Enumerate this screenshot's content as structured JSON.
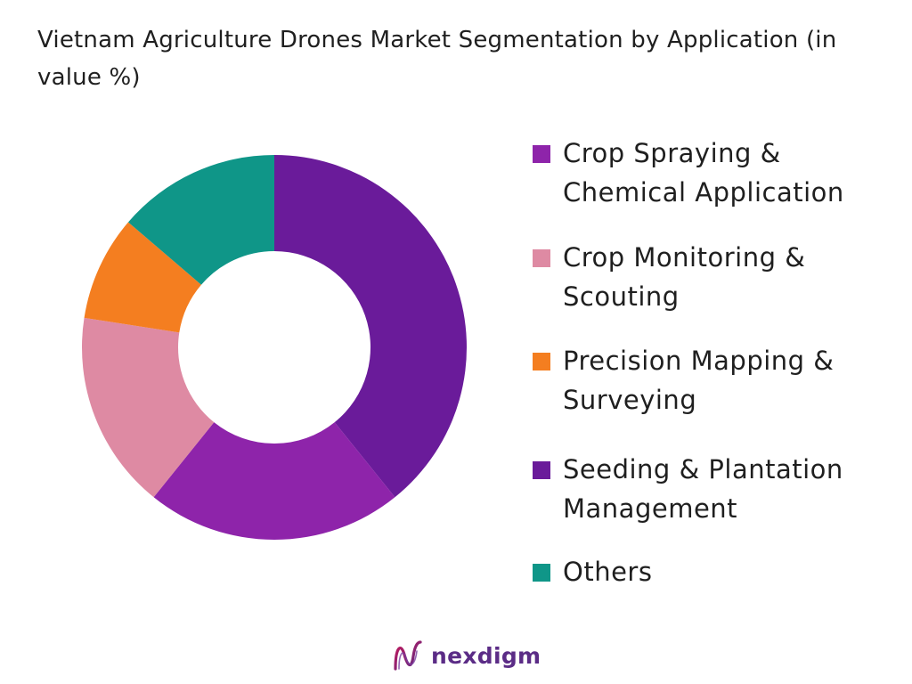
{
  "chart_data": {
    "type": "pie",
    "donut": true,
    "title": "Vietnam Agriculture Drones Market Segmentation by Application (in value %)",
    "categories": [
      "Crop Spraying & Chemical Application",
      "Crop Monitoring & Scouting",
      "Precision Mapping & Surveying",
      "Seeding & Plantation Management",
      "Others"
    ],
    "values": [
      40,
      17,
      9,
      22,
      14
    ],
    "slice_order_clockwise_from_top": [
      "Crop Spraying & Chemical Application",
      "Seeding & Plantation Management",
      "Crop Monitoring & Scouting",
      "Precision Mapping & Surveying",
      "Others"
    ],
    "colors": [
      "#6a1b9a",
      "#de8aa3",
      "#f47e20",
      "#8e24aa",
      "#0f9688"
    ],
    "legend_position": "right"
  },
  "legend_labels": [
    [
      "Crop Spraying &",
      "Chemical Application"
    ],
    [
      "Crop Monitoring &",
      "Scouting"
    ],
    [
      "Precision Mapping &",
      "Surveying"
    ],
    [
      "Seeding & Plantation",
      "Management"
    ],
    [
      "Others"
    ]
  ],
  "legend_swatch_colors": [
    "#8e24aa",
    "#de8aa3",
    "#f47e20",
    "#6a1b9a",
    "#0f9688"
  ],
  "brand": {
    "name": "nexdigm",
    "color": "#5b2c86"
  }
}
